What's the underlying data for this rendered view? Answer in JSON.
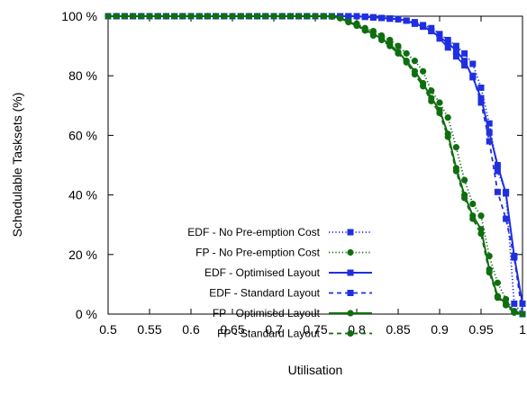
{
  "chart_data": {
    "type": "line",
    "xlabel": "Utilisation",
    "ylabel": "Schedulable Tasksets (%)",
    "xlim": [
      0.5,
      1.0
    ],
    "ylim": [
      0,
      100
    ],
    "x_ticks": [
      {
        "value": 0.5,
        "label": "0.5"
      },
      {
        "value": 0.55,
        "label": "0.55"
      },
      {
        "value": 0.6,
        "label": "0.6"
      },
      {
        "value": 0.65,
        "label": "0.65"
      },
      {
        "value": 0.7,
        "label": "0.7"
      },
      {
        "value": 0.75,
        "label": "0.75"
      },
      {
        "value": 0.8,
        "label": "0.8"
      },
      {
        "value": 0.85,
        "label": "0.85"
      },
      {
        "value": 0.9,
        "label": "0.9"
      },
      {
        "value": 0.95,
        "label": "0.95"
      },
      {
        "value": 1.0,
        "label": "1"
      }
    ],
    "y_ticks": [
      {
        "value": 0,
        "label": "0 %"
      },
      {
        "value": 20,
        "label": "20 %"
      },
      {
        "value": 40,
        "label": "40 %"
      },
      {
        "value": 60,
        "label": "60 %"
      },
      {
        "value": 80,
        "label": "80 %"
      },
      {
        "value": 100,
        "label": "100 %"
      }
    ],
    "grid": false,
    "legend_position": "bottom-left",
    "x": [
      0.5,
      0.51,
      0.52,
      0.53,
      0.54,
      0.55,
      0.56,
      0.57,
      0.58,
      0.59,
      0.6,
      0.61,
      0.62,
      0.63,
      0.64,
      0.65,
      0.66,
      0.67,
      0.68,
      0.69,
      0.7,
      0.71,
      0.72,
      0.73,
      0.74,
      0.75,
      0.76,
      0.77,
      0.78,
      0.79,
      0.8,
      0.81,
      0.82,
      0.83,
      0.84,
      0.85,
      0.86,
      0.87,
      0.88,
      0.89,
      0.9,
      0.91,
      0.92,
      0.93,
      0.94,
      0.95,
      0.96,
      0.97,
      0.98,
      0.99,
      1.0
    ],
    "series": [
      {
        "name": "EDF - No Pre-emption Cost",
        "color": "#1f2fe0",
        "line": "dotted",
        "marker": "square",
        "values": [
          100,
          100,
          100,
          100,
          100,
          100,
          100,
          100,
          100,
          100,
          100,
          100,
          100,
          100,
          100,
          100,
          100,
          100,
          100,
          100,
          100,
          100,
          100,
          100,
          100,
          100,
          100,
          100,
          100,
          100,
          100,
          99.8,
          99.6,
          99.4,
          99.2,
          99,
          98.5,
          98,
          97,
          96,
          94,
          92,
          90,
          87.5,
          84,
          76,
          64,
          48,
          41,
          3.5,
          0
        ]
      },
      {
        "name": "FP - No Pre-emption Cost",
        "color": "#0f6e0f",
        "line": "dotted",
        "marker": "circle",
        "values": [
          100,
          100,
          100,
          100,
          100,
          100,
          100,
          100,
          100,
          100,
          100,
          100,
          100,
          100,
          100,
          100,
          100,
          100,
          100,
          100,
          100,
          100,
          100,
          100,
          100,
          100,
          100,
          99.9,
          99.5,
          98.5,
          97.5,
          96,
          95,
          93.5,
          92,
          90,
          87.5,
          85,
          81.5,
          75,
          71,
          66,
          56,
          45,
          37,
          33,
          19.5,
          10.5,
          5,
          1,
          0
        ]
      },
      {
        "name": "EDF - Optimised Layout",
        "color": "#1f2fe0",
        "line": "solid",
        "marker": "square",
        "values": [
          100,
          100,
          100,
          100,
          100,
          100,
          100,
          100,
          100,
          100,
          100,
          100,
          100,
          100,
          100,
          100,
          100,
          100,
          100,
          100,
          100,
          100,
          100,
          100,
          100,
          100,
          100,
          100,
          100,
          100,
          100,
          99.8,
          99.6,
          99.4,
          99.2,
          99,
          98.5,
          97.5,
          96.5,
          95,
          93,
          91,
          88.5,
          85,
          79.5,
          72.5,
          61,
          50,
          40.5,
          19.5,
          3.5
        ]
      },
      {
        "name": "EDF - Standard Layout",
        "color": "#1f2fe0",
        "line": "dashed",
        "marker": "square",
        "values": [
          100,
          100,
          100,
          100,
          100,
          100,
          100,
          100,
          100,
          100,
          100,
          100,
          100,
          100,
          100,
          100,
          100,
          100,
          100,
          100,
          100,
          100,
          100,
          100,
          100,
          100,
          100,
          100,
          100,
          100,
          100,
          99.8,
          99.6,
          99.4,
          99.2,
          99,
          98.5,
          97.5,
          96.5,
          95,
          92.5,
          89.5,
          86.5,
          83.5,
          80,
          71,
          58,
          41,
          32,
          19,
          0
        ]
      },
      {
        "name": "FP - Optimised Layout",
        "color": "#0f6e0f",
        "line": "solid",
        "marker": "circle",
        "values": [
          100,
          100,
          100,
          100,
          100,
          100,
          100,
          100,
          100,
          100,
          100,
          100,
          100,
          100,
          100,
          100,
          100,
          100,
          100,
          100,
          100,
          100,
          100,
          100,
          100,
          100,
          100,
          99.9,
          99.4,
          98.2,
          97,
          95.5,
          94,
          92.5,
          90.5,
          88,
          85,
          81.5,
          77.5,
          72.5,
          68.5,
          60.5,
          49,
          40,
          33,
          28.5,
          15,
          6,
          3.5,
          1,
          0
        ]
      },
      {
        "name": "FP - Standard Layout",
        "color": "#0f6e0f",
        "line": "dashed",
        "marker": "circle",
        "values": [
          100,
          100,
          100,
          100,
          100,
          100,
          100,
          100,
          100,
          100,
          100,
          100,
          100,
          100,
          100,
          100,
          100,
          100,
          100,
          100,
          100,
          100,
          100,
          100,
          100,
          100,
          100,
          99.9,
          99.3,
          98,
          96.8,
          95.2,
          93.5,
          92,
          90,
          87.5,
          84.5,
          80.5,
          76.5,
          71.5,
          67.5,
          59.5,
          48,
          39,
          32,
          27,
          14,
          5.5,
          3,
          0.5,
          0
        ]
      }
    ]
  }
}
